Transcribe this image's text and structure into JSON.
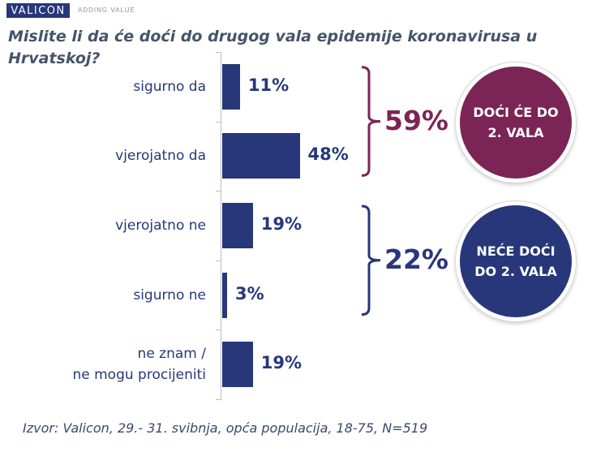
{
  "header": {
    "logo": "VALICON",
    "tagline": "ADDING VALUE"
  },
  "chart_data": {
    "type": "bar",
    "orientation": "horizontal",
    "title": "Mislite li da će doći do drugog vala epidemije koronavirusa u Hrvatskoj?",
    "categories": [
      "sigurno da",
      "vjerojatno da",
      "vjerojatno ne",
      "sigurno ne",
      "ne znam /\nne mogu procijeniti"
    ],
    "values": [
      11,
      48,
      19,
      3,
      19
    ],
    "value_labels": [
      "11%",
      "48%",
      "19%",
      "3%",
      "19%"
    ],
    "unit": "%",
    "xlim": [
      0,
      100
    ],
    "bar_color": "#27377a",
    "groups": [
      {
        "total_label": "59%",
        "circle_text": "DOĆI ĆE DO\n2. VALA",
        "color": "#7b2556",
        "members": [
          "sigurno da",
          "vjerojatno da"
        ]
      },
      {
        "total_label": "22%",
        "circle_text": "NEĆE DOĆI\nDO 2. VALA",
        "color": "#27377a",
        "members": [
          "vjerojatno ne",
          "sigurno ne"
        ]
      }
    ]
  },
  "footer": {
    "source": "Izvor: Valicon, 29.- 31. svibnja, opća populacija, 18-75, N=519"
  }
}
